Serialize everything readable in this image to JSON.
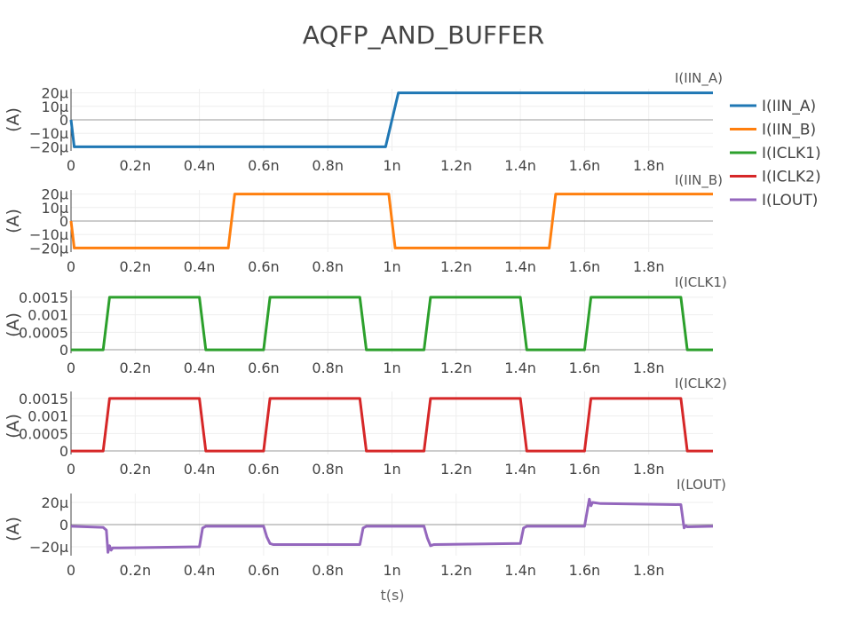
{
  "chart_data": {
    "type": "line",
    "title": "AQFP_AND_BUFFER",
    "xlabel": "t(s)",
    "xlim": [
      0,
      2e-09
    ],
    "x_ticks": [
      0,
      2e-10,
      4e-10,
      6e-10,
      8e-10,
      1e-09,
      1.2e-09,
      1.4e-09,
      1.6e-09,
      1.8e-09
    ],
    "x_tick_labels": [
      "0",
      "0.2n",
      "0.4n",
      "0.6n",
      "0.8n",
      "1n",
      "1.2n",
      "1.4n",
      "1.6n",
      "1.8n"
    ],
    "legend_position": "right",
    "grid": true,
    "panels": [
      {
        "subtitle": "I(IIN_A)",
        "ylabel": "(A)",
        "ylim": [
          -2.3e-05,
          2.3e-05
        ],
        "y_ticks": [
          -2e-05,
          -1e-05,
          0,
          1e-05,
          2e-05
        ],
        "y_tick_labels": [
          "−20μ",
          "−10μ",
          "0",
          "10μ",
          "20μ"
        ],
        "series": [
          {
            "name": "I(IIN_A)",
            "color": "#1f77b4",
            "x": [
              0,
              1e-11,
              9.8e-10,
              1.02e-09,
              2e-09
            ],
            "y": [
              0,
              -2e-05,
              -2e-05,
              2e-05,
              2e-05
            ]
          }
        ]
      },
      {
        "subtitle": "I(IIN_B)",
        "ylabel": "(A)",
        "ylim": [
          -2.3e-05,
          2.3e-05
        ],
        "y_ticks": [
          -2e-05,
          -1e-05,
          0,
          1e-05,
          2e-05
        ],
        "y_tick_labels": [
          "−20μ",
          "−10μ",
          "0",
          "10μ",
          "20μ"
        ],
        "series": [
          {
            "name": "I(IIN_B)",
            "color": "#ff7f0e",
            "x": [
              0,
              1e-11,
              4.9e-10,
              5.1e-10,
              9.9e-10,
              1.01e-09,
              1.49e-09,
              1.51e-09,
              2e-09
            ],
            "y": [
              0,
              -2e-05,
              -2e-05,
              2e-05,
              2e-05,
              -2e-05,
              -2e-05,
              2e-05,
              2e-05
            ]
          }
        ]
      },
      {
        "subtitle": "I(ICLK1)",
        "ylabel": "(A)",
        "ylim": [
          -0.0001,
          0.0017
        ],
        "y_ticks": [
          0,
          0.0005,
          0.001,
          0.0015
        ],
        "y_tick_labels": [
          "0",
          "0.0005",
          "0.001",
          "0.0015"
        ],
        "series": [
          {
            "name": "I(ICLK1)",
            "color": "#2ca02c",
            "x": [
              0,
              1e-10,
              1.2e-10,
              4e-10,
              4.2e-10,
              6e-10,
              6.2e-10,
              9e-10,
              9.2e-10,
              1.1e-09,
              1.12e-09,
              1.4e-09,
              1.42e-09,
              1.6e-09,
              1.62e-09,
              1.9e-09,
              1.92e-09,
              2e-09
            ],
            "y": [
              0,
              0,
              0.0015,
              0.0015,
              0,
              0,
              0.0015,
              0.0015,
              0,
              0,
              0.0015,
              0.0015,
              0,
              0,
              0.0015,
              0.0015,
              0,
              0
            ]
          }
        ]
      },
      {
        "subtitle": "I(ICLK2)",
        "ylabel": "(A)",
        "ylim": [
          -0.0001,
          0.0017
        ],
        "y_ticks": [
          0,
          0.0005,
          0.001,
          0.0015
        ],
        "y_tick_labels": [
          "0",
          "0.0005",
          "0.001",
          "0.0015"
        ],
        "series": [
          {
            "name": "I(ICLK2)",
            "color": "#d62728",
            "x": [
              0,
              1e-10,
              1.2e-10,
              4e-10,
              4.2e-10,
              6e-10,
              6.2e-10,
              9e-10,
              9.2e-10,
              1.1e-09,
              1.12e-09,
              1.4e-09,
              1.42e-09,
              1.6e-09,
              1.62e-09,
              1.9e-09,
              1.92e-09,
              2e-09
            ],
            "y": [
              0,
              0,
              0.0015,
              0.0015,
              0,
              0,
              0.0015,
              0.0015,
              0,
              0,
              0.0015,
              0.0015,
              0,
              0,
              0.0015,
              0.0015,
              0,
              0
            ]
          }
        ]
      },
      {
        "subtitle": "I(LOUT)",
        "ylabel": "(A)",
        "ylim": [
          -2.8e-05,
          2.8e-05
        ],
        "y_ticks": [
          -2e-05,
          0,
          2e-05
        ],
        "y_tick_labels": [
          "−20μ",
          "0",
          "20μ"
        ],
        "series": [
          {
            "name": "I(LOUT)",
            "color": "#9467bd",
            "x": [
              0,
              1e-10,
              1.1e-10,
              1.15e-10,
              1.2e-10,
              1.25e-10,
              1.3e-10,
              1.5e-10,
              4e-10,
              4.1e-10,
              4.2e-10,
              6e-10,
              6.1e-10,
              6.2e-10,
              6.3e-10,
              9e-10,
              9.1e-10,
              9.2e-10,
              1.1e-09,
              1.11e-09,
              1.12e-09,
              1.13e-09,
              1.4e-09,
              1.41e-09,
              1.42e-09,
              1.6e-09,
              1.61e-09,
              1.615e-09,
              1.62e-09,
              1.625e-09,
              1.65e-09,
              1.9e-09,
              1.91e-09,
              1.915e-09,
              1.92e-09,
              2e-09
            ],
            "y": [
              -1.5e-06,
              -2.5e-06,
              -5e-06,
              -2.5e-05,
              -1.9e-05,
              -2.3e-05,
              -2.1e-05,
              -2.1e-05,
              -2e-05,
              -3e-06,
              -1.5e-06,
              -1.5e-06,
              -1.1e-05,
              -1.7e-05,
              -1.8e-05,
              -1.8e-05,
              -3e-06,
              -1.5e-06,
              -1.5e-06,
              -1.2e-05,
              -1.9e-05,
              -1.8e-05,
              -1.7e-05,
              -3e-06,
              -1.5e-06,
              -1.5e-06,
              1.5e-05,
              2.3e-05,
              1.7e-05,
              2e-05,
              1.9e-05,
              1.8e-05,
              -3e-06,
              -1e-06,
              -2e-06,
              -1.5e-06
            ]
          }
        ]
      }
    ]
  }
}
